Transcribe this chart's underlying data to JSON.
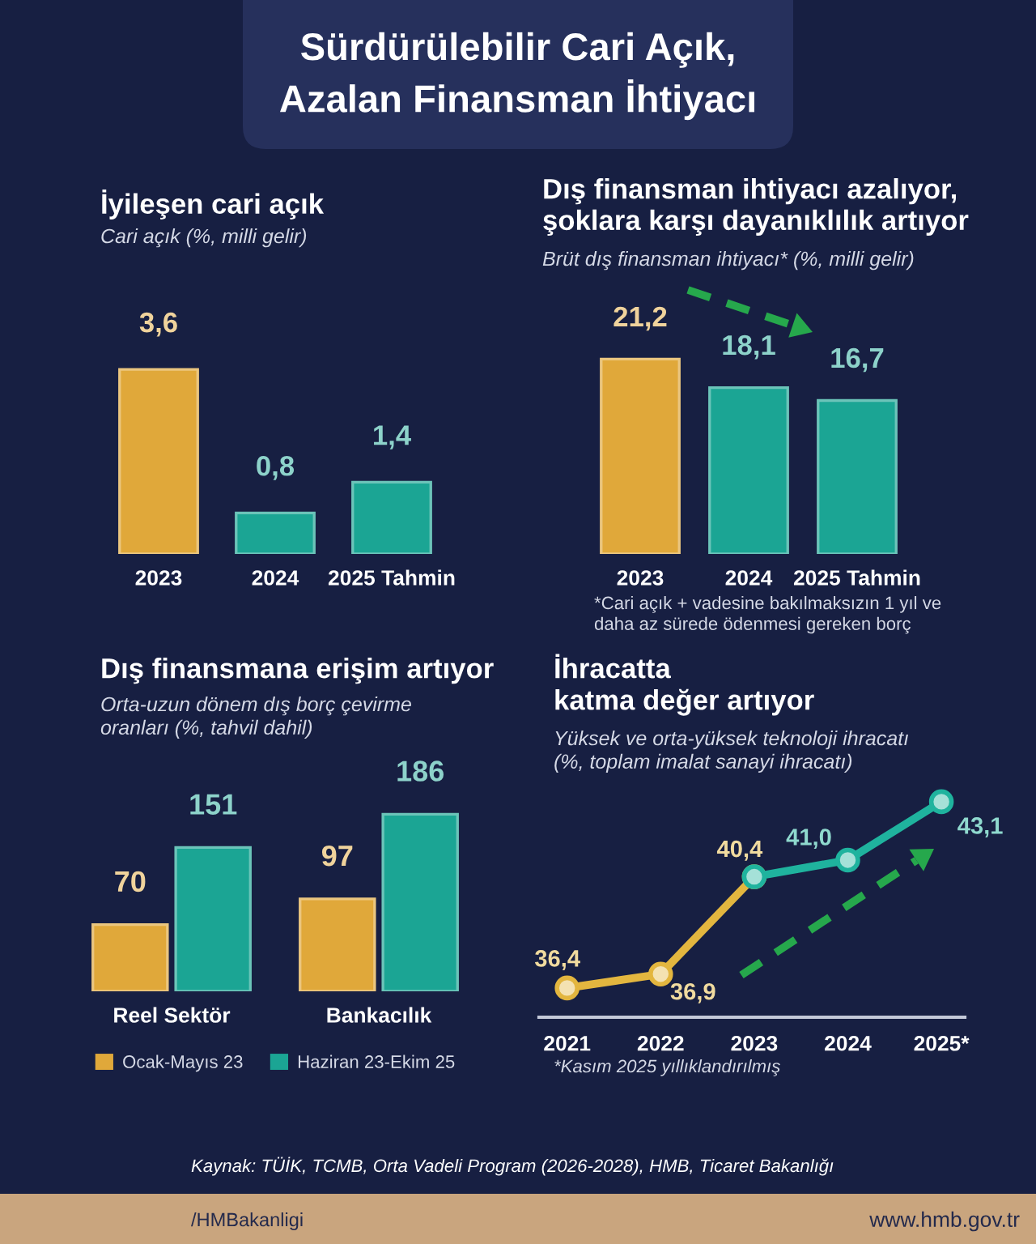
{
  "chart_data": [
    {
      "type": "other",
      "title": "Sürdürülebilir Cari Açık,\nAzalan Finansman İhtiyacı"
    },
    {
      "type": "bar",
      "title": "İyileşen cari açık",
      "subtitle": "Cari açık (%, milli gelir)",
      "categories": [
        "2023",
        "2024",
        "2025 Tahmin"
      ],
      "values": [
        3.6,
        0.8,
        1.4
      ],
      "colors": [
        "#e0a83a",
        "#1ba594",
        "#1ba594"
      ],
      "value_labels": [
        "3,6",
        "0,8",
        "1,4"
      ],
      "tick_labels": "x"
    },
    {
      "type": "bar",
      "title": "Dış finansman ihtiyacı azalıyor,\nşoklara karşı dayanıklılık artıyor",
      "subtitle": "Brüt dış finansman ihtiyacı* (%, milli gelir)",
      "categories": [
        "2023",
        "2024",
        "2025 Tahmin"
      ],
      "values": [
        21.2,
        18.1,
        16.7
      ],
      "colors": [
        "#e0a83a",
        "#1ba594",
        "#1ba594"
      ],
      "value_labels": [
        "21,2",
        "18,1",
        "16,7"
      ],
      "annotations": [
        "*Cari açık + vadesine bakılmaksızın 1 yıl ve\ndaha az sürede ödenmesi gereken borç"
      ],
      "tick_labels": "x"
    },
    {
      "type": "bar",
      "title": "Dış finansmana erişim artıyor",
      "subtitle": "Orta-uzun dönem dış borç çevirme\noranları (%, tahvil dahil)",
      "categories": [
        "Reel Sektör",
        "Bankacılık"
      ],
      "series": [
        {
          "name": "Ocak-Mayıs 23",
          "color": "#e0a83a",
          "values": [
            70,
            97
          ]
        },
        {
          "name": "Haziran 23-Ekim 25",
          "color": "#1ba594",
          "values": [
            151,
            186
          ]
        }
      ],
      "data_labels": true,
      "legend": "bottom",
      "tick_labels": "x"
    },
    {
      "type": "line",
      "title": "İhracatta\nkatma değer artıyor",
      "subtitle": "Yüksek ve orta-yüksek teknoloji ihracatı\n(%, toplam imalat sanayi ihracatı)",
      "categories": [
        "2021",
        "2022",
        "2023",
        "2024",
        "2025*"
      ],
      "series": [
        {
          "color": "#e3b63f",
          "values": [
            36.4,
            36.9,
            40.4,
            null,
            null
          ],
          "value_labels": [
            "36,4",
            "36,9",
            "40,4",
            null,
            null
          ]
        },
        {
          "color": "#1fb39e",
          "values": [
            null,
            null,
            40.4,
            41.0,
            43.1
          ],
          "value_labels": [
            null,
            null,
            null,
            "41,0",
            "43,1"
          ]
        }
      ],
      "marker": "circle",
      "line_style": "solid",
      "annotations": [
        "*Kasım 2025 yıllıklandırılmış"
      ],
      "tick_labels": "x"
    },
    {
      "type": "other",
      "annotations": [
        "Kaynak: TÜİK, TCMB, Orta Vadeli Program (2026-2028), HMB, Ticaret Bakanlığı",
        "/HMBakanligi",
        "www.hmb.gov.tr"
      ]
    }
  ]
}
